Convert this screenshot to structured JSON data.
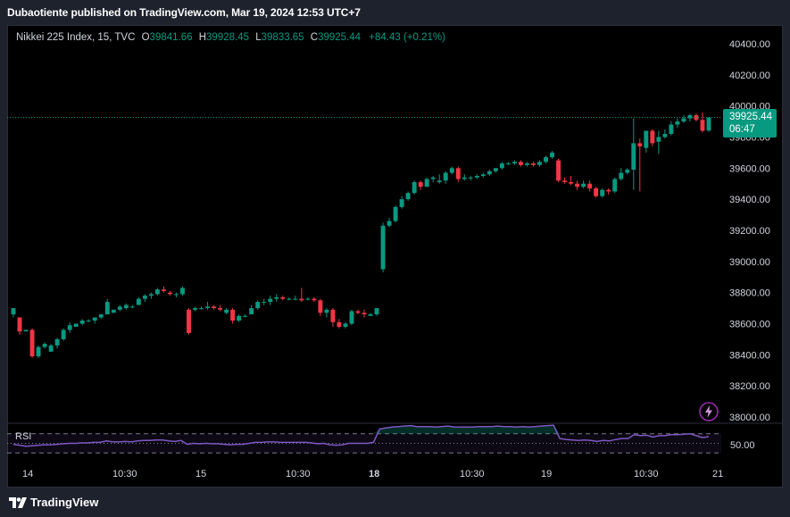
{
  "header": {
    "text": "Dubaotiente published on TradingView.com, Mar 19, 2024 12:53 UTC+7"
  },
  "legend": {
    "symbol": "Nikkei 225 Index, 15, TVC",
    "open_label": "O",
    "open": "39841.66",
    "high_label": "H",
    "high": "39928.45",
    "low_label": "L",
    "low": "39833.65",
    "close_label": "C",
    "close": "39925.44",
    "change": "+84.43 (+0.21%)"
  },
  "last_price": {
    "price": "39925.44",
    "countdown": "06:47"
  },
  "rsi": {
    "label": "RSI",
    "value_label": "50.00"
  },
  "footer": {
    "brand": "TradingView"
  },
  "colors": {
    "up": "#089981",
    "down": "#f23645",
    "rsi_line": "#7e57c2",
    "background": "#000000"
  },
  "chart_data": {
    "type": "candlestick",
    "y_ticks": [
      "40400.00",
      "40200.00",
      "40000.00",
      "39800.00",
      "39600.00",
      "39400.00",
      "39200.00",
      "39000.00",
      "38800.00",
      "38600.00",
      "38400.00",
      "38200.00",
      "38000.00"
    ],
    "y_range": [
      37960,
      40520
    ],
    "x_ticks": [
      "14",
      "10:30",
      "15",
      "10:30",
      "18",
      "10:30",
      "19",
      "10:30",
      "21"
    ],
    "x_ticks_bold": [
      "18"
    ],
    "last_price": 39925.44,
    "candles": [
      [
        38660,
        38700,
        38640,
        38700
      ],
      [
        38640,
        38640,
        38530,
        38550
      ],
      [
        38550,
        38560,
        38560,
        38560
      ],
      [
        38560,
        38570,
        38380,
        38390
      ],
      [
        38390,
        38460,
        38380,
        38450
      ],
      [
        38450,
        38480,
        38440,
        38470
      ],
      [
        38420,
        38470,
        38420,
        38460
      ],
      [
        38460,
        38510,
        38440,
        38500
      ],
      [
        38500,
        38570,
        38490,
        38560
      ],
      [
        38560,
        38610,
        38540,
        38590
      ],
      [
        38580,
        38600,
        38580,
        38600
      ],
      [
        38600,
        38630,
        38590,
        38620
      ],
      [
        38620,
        38630,
        38610,
        38620
      ],
      [
        38620,
        38640,
        38600,
        38640
      ],
      [
        38640,
        38660,
        38630,
        38660
      ],
      [
        38660,
        38760,
        38660,
        38740
      ],
      [
        38670,
        38690,
        38670,
        38690
      ],
      [
        38690,
        38720,
        38680,
        38710
      ],
      [
        38700,
        38730,
        38690,
        38720
      ],
      [
        38710,
        38720,
        38700,
        38710
      ],
      [
        38720,
        38770,
        38720,
        38760
      ],
      [
        38760,
        38790,
        38740,
        38780
      ],
      [
        38780,
        38800,
        38760,
        38790
      ],
      [
        38790,
        38830,
        38780,
        38820
      ],
      [
        38820,
        38840,
        38800,
        38810
      ],
      [
        38800,
        38810,
        38780,
        38790
      ],
      [
        38790,
        38800,
        38770,
        38790
      ],
      [
        38790,
        38840,
        38780,
        38830
      ],
      [
        38690,
        38700,
        38530,
        38540
      ],
      [
        38690,
        38710,
        38680,
        38700
      ],
      [
        38700,
        38710,
        38690,
        38700
      ],
      [
        38700,
        38740,
        38690,
        38710
      ],
      [
        38710,
        38720,
        38690,
        38700
      ],
      [
        38700,
        38720,
        38680,
        38690
      ],
      [
        38670,
        38700,
        38660,
        38690
      ],
      [
        38690,
        38700,
        38600,
        38620
      ],
      [
        38620,
        38660,
        38610,
        38650
      ],
      [
        38650,
        38660,
        38640,
        38650
      ],
      [
        38660,
        38720,
        38660,
        38700
      ],
      [
        38700,
        38750,
        38690,
        38740
      ],
      [
        38740,
        38760,
        38720,
        38740
      ],
      [
        38740,
        38780,
        38720,
        38760
      ],
      [
        38760,
        38790,
        38740,
        38770
      ],
      [
        38770,
        38780,
        38750,
        38760
      ],
      [
        38760,
        38770,
        38750,
        38760
      ],
      [
        38760,
        38780,
        38750,
        38760
      ],
      [
        38760,
        38830,
        38740,
        38750
      ],
      [
        38760,
        38770,
        38750,
        38760
      ],
      [
        38760,
        38770,
        38740,
        38750
      ],
      [
        38750,
        38760,
        38650,
        38670
      ],
      [
        38670,
        38700,
        38640,
        38690
      ],
      [
        38690,
        38700,
        38580,
        38610
      ],
      [
        38610,
        38630,
        38570,
        38580
      ],
      [
        38580,
        38610,
        38570,
        38600
      ],
      [
        38600,
        38690,
        38590,
        38680
      ],
      [
        38680,
        38690,
        38660,
        38670
      ],
      [
        38670,
        38690,
        38640,
        38660
      ],
      [
        38650,
        38670,
        38650,
        38660
      ],
      [
        38660,
        38700,
        38650,
        38700
      ],
      [
        38950,
        39250,
        38930,
        39230
      ],
      [
        39230,
        39280,
        39220,
        39260
      ],
      [
        39260,
        39360,
        39250,
        39350
      ],
      [
        39350,
        39420,
        39340,
        39400
      ],
      [
        39400,
        39450,
        39390,
        39440
      ],
      [
        39440,
        39520,
        39430,
        39510
      ],
      [
        39510,
        39520,
        39460,
        39480
      ],
      [
        39480,
        39540,
        39480,
        39530
      ],
      [
        39530,
        39550,
        39510,
        39540
      ],
      [
        39510,
        39560,
        39500,
        39520
      ],
      [
        39520,
        39580,
        39500,
        39570
      ],
      [
        39570,
        39610,
        39560,
        39600
      ],
      [
        39600,
        39610,
        39510,
        39530
      ],
      [
        39530,
        39560,
        39520,
        39540
      ],
      [
        39540,
        39550,
        39520,
        39540
      ],
      [
        39540,
        39560,
        39530,
        39550
      ],
      [
        39550,
        39570,
        39540,
        39560
      ],
      [
        39560,
        39590,
        39550,
        39580
      ],
      [
        39580,
        39600,
        39570,
        39600
      ],
      [
        39600,
        39640,
        39590,
        39630
      ],
      [
        39630,
        39640,
        39620,
        39630
      ],
      [
        39630,
        39650,
        39620,
        39640
      ],
      [
        39640,
        39650,
        39610,
        39620
      ],
      [
        39620,
        39640,
        39610,
        39630
      ],
      [
        39630,
        39640,
        39610,
        39620
      ],
      [
        39620,
        39650,
        39610,
        39640
      ],
      [
        39640,
        39680,
        39630,
        39670
      ],
      [
        39670,
        39710,
        39660,
        39700
      ],
      [
        39650,
        39660,
        39510,
        39520
      ],
      [
        39520,
        39540,
        39500,
        39510
      ],
      [
        39510,
        39550,
        39490,
        39500
      ],
      [
        39500,
        39520,
        39460,
        39480
      ],
      [
        39480,
        39520,
        39470,
        39500
      ],
      [
        39500,
        39520,
        39450,
        39470
      ],
      [
        39470,
        39480,
        39410,
        39420
      ],
      [
        39420,
        39470,
        39410,
        39460
      ],
      [
        39460,
        39470,
        39430,
        39450
      ],
      [
        39450,
        39540,
        39440,
        39530
      ],
      [
        39530,
        39600,
        39520,
        39570
      ],
      [
        39570,
        39600,
        39560,
        39590
      ],
      [
        39590,
        39920,
        39460,
        39760
      ],
      [
        39760,
        39790,
        39450,
        39740
      ],
      [
        39730,
        39840,
        39700,
        39840
      ],
      [
        39840,
        39850,
        39740,
        39760
      ],
      [
        39770,
        39840,
        39690,
        39800
      ],
      [
        39800,
        39850,
        39790,
        39820
      ],
      [
        39820,
        39900,
        39810,
        39880
      ],
      [
        39880,
        39920,
        39860,
        39900
      ],
      [
        39900,
        39940,
        39890,
        39920
      ],
      [
        39920,
        39950,
        39900,
        39940
      ],
      [
        39940,
        39950,
        39900,
        39910
      ],
      [
        39910,
        39960,
        39830,
        39840
      ],
      [
        39841.66,
        39928.45,
        39833.65,
        39925.44
      ]
    ],
    "rsi": {
      "level_lines": [
        70,
        50,
        30
      ],
      "values": [
        48,
        46,
        44,
        45,
        46,
        47,
        47,
        48,
        49,
        50,
        50,
        51,
        51,
        52,
        52,
        55,
        53,
        53,
        54,
        53,
        55,
        56,
        56,
        57,
        57,
        55,
        54,
        56,
        48,
        50,
        49,
        50,
        49,
        49,
        48,
        47,
        48,
        48,
        50,
        52,
        52,
        53,
        53,
        52,
        52,
        52,
        52,
        52,
        51,
        49,
        50,
        47,
        46,
        47,
        50,
        50,
        50,
        50,
        52,
        80,
        82,
        84,
        85,
        86,
        87,
        85,
        85,
        85,
        84,
        85,
        86,
        84,
        84,
        84,
        84,
        85,
        85,
        85,
        86,
        85,
        85,
        84,
        85,
        84,
        85,
        86,
        87,
        88,
        60,
        58,
        57,
        56,
        57,
        56,
        54,
        56,
        55,
        58,
        60,
        60,
        68,
        66,
        67,
        63,
        66,
        66,
        68,
        68,
        69,
        70,
        66,
        62,
        64
      ]
    }
  }
}
